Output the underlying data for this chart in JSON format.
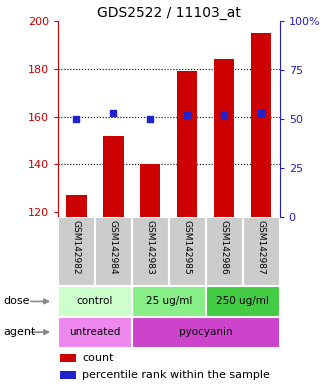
{
  "title": "GDS2522 / 11103_at",
  "samples": [
    "GSM142982",
    "GSM142984",
    "GSM142983",
    "GSM142985",
    "GSM142986",
    "GSM142987"
  ],
  "counts": [
    127,
    152,
    140,
    179,
    184,
    195
  ],
  "percentiles": [
    50,
    53,
    50,
    52,
    52,
    53
  ],
  "ylim_left": [
    118,
    200
  ],
  "ylim_right": [
    0,
    100
  ],
  "yticks_left": [
    120,
    140,
    160,
    180,
    200
  ],
  "yticks_right": [
    0,
    25,
    50,
    75,
    100
  ],
  "bar_color": "#cc0000",
  "dot_color": "#2222cc",
  "bar_bottom": 118,
  "dose_groups": [
    {
      "label": "control",
      "start": 0,
      "end": 2,
      "color": "#ccffcc"
    },
    {
      "label": "25 ug/ml",
      "start": 2,
      "end": 4,
      "color": "#88ee88"
    },
    {
      "label": "250 ug/ml",
      "start": 4,
      "end": 6,
      "color": "#44cc44"
    }
  ],
  "agent_groups": [
    {
      "label": "untreated",
      "start": 0,
      "end": 2,
      "color": "#ee88ee"
    },
    {
      "label": "pyocyanin",
      "start": 2,
      "end": 6,
      "color": "#cc44cc"
    }
  ],
  "dose_label": "dose",
  "agent_label": "agent",
  "legend_count_label": "count",
  "legend_pct_label": "percentile rank within the sample",
  "xlabel_row_bg": "#cccccc",
  "grid_yticks": [
    140,
    160,
    180
  ]
}
